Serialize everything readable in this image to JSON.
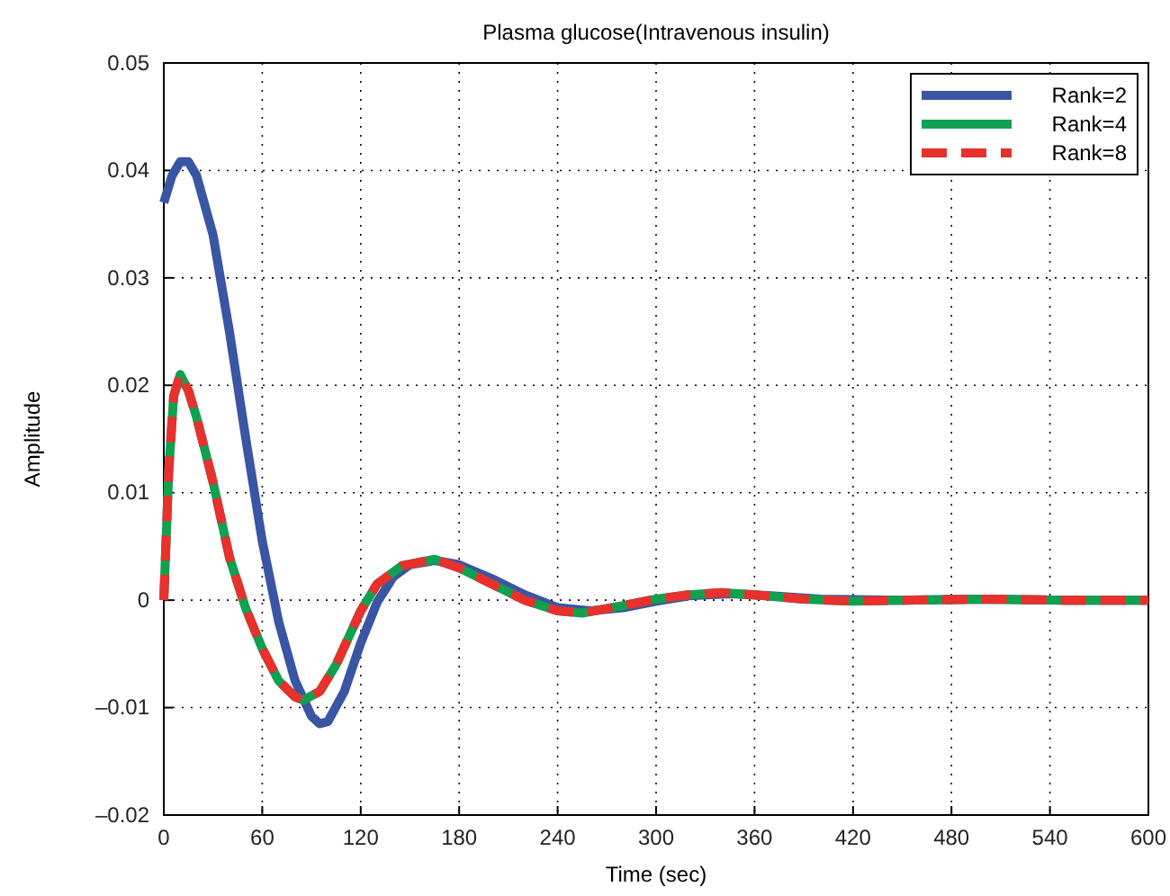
{
  "chart_data": {
    "type": "line",
    "title": "Plasma glucose(Intravenous insulin)",
    "xlabel": "Time (sec)",
    "ylabel": "Amplitude",
    "xlim": [
      0,
      600
    ],
    "xticks": [
      0,
      60,
      120,
      180,
      240,
      300,
      360,
      420,
      480,
      540,
      600
    ],
    "ylim": [
      -0.02,
      0.05
    ],
    "yticks": [
      {
        "value": -0.02,
        "label": "–0.02"
      },
      {
        "value": -0.01,
        "label": "–0.01"
      },
      0,
      0.01,
      0.02,
      0.03,
      0.04,
      0.05
    ],
    "grid": true,
    "legend": "top right",
    "series": [
      {
        "name": "Rank=2",
        "color": "#3a55a4",
        "line_style": "solid",
        "x": [
          0,
          5,
          10,
          15,
          20,
          30,
          40,
          50,
          60,
          70,
          80,
          90,
          95,
          100,
          110,
          120,
          130,
          140,
          150,
          165,
          180,
          200,
          220,
          240,
          260,
          280,
          300,
          320,
          345,
          370,
          400,
          450,
          500,
          550,
          600
        ],
        "values": [
          0.037,
          0.0395,
          0.0408,
          0.0408,
          0.0395,
          0.034,
          0.025,
          0.015,
          0.0055,
          -0.002,
          -0.0075,
          -0.0108,
          -0.0115,
          -0.0113,
          -0.0085,
          -0.004,
          -0.0002,
          0.0022,
          0.0033,
          0.0037,
          0.0033,
          0.002,
          0.0005,
          -0.0007,
          -0.001,
          -0.0007,
          -0.0001,
          0.0004,
          0.0006,
          0.0004,
          0.0001,
          0,
          0.0001,
          0,
          0
        ]
      },
      {
        "name": "Rank=4",
        "color": "#10a050",
        "line_style": "solid",
        "x": [
          0,
          3,
          6,
          10,
          15,
          20,
          30,
          40,
          50,
          60,
          70,
          80,
          85,
          95,
          105,
          120,
          130,
          145,
          165,
          180,
          200,
          220,
          240,
          255,
          280,
          300,
          320,
          340,
          360,
          390,
          420,
          450,
          500,
          550,
          600
        ],
        "values": [
          0,
          0.012,
          0.019,
          0.021,
          0.0195,
          0.017,
          0.011,
          0.004,
          -0.0008,
          -0.0045,
          -0.0075,
          -0.009,
          -0.0093,
          -0.0085,
          -0.006,
          -0.001,
          0.0015,
          0.0032,
          0.0038,
          0.003,
          0.0015,
          0,
          -0.001,
          -0.0012,
          -0.0005,
          0.0001,
          0.0005,
          0.0007,
          0.0005,
          0.0001,
          -0.0001,
          0,
          0.0001,
          0,
          0
        ]
      },
      {
        "name": "Rank=8",
        "color": "#e8302c",
        "line_style": "dashed",
        "x": [
          0,
          3,
          6,
          10,
          15,
          20,
          30,
          40,
          50,
          60,
          70,
          80,
          85,
          95,
          105,
          120,
          130,
          145,
          165,
          180,
          200,
          220,
          240,
          255,
          280,
          300,
          320,
          340,
          360,
          390,
          420,
          450,
          500,
          550,
          600
        ],
        "values": [
          0,
          0.012,
          0.019,
          0.021,
          0.0195,
          0.017,
          0.011,
          0.004,
          -0.0008,
          -0.0045,
          -0.0075,
          -0.009,
          -0.0093,
          -0.0085,
          -0.006,
          -0.001,
          0.0015,
          0.0032,
          0.0038,
          0.003,
          0.0015,
          0,
          -0.001,
          -0.0012,
          -0.0005,
          0.0001,
          0.0005,
          0.0007,
          0.0005,
          0.0001,
          -0.0001,
          0,
          0.0001,
          0,
          0
        ]
      }
    ]
  }
}
